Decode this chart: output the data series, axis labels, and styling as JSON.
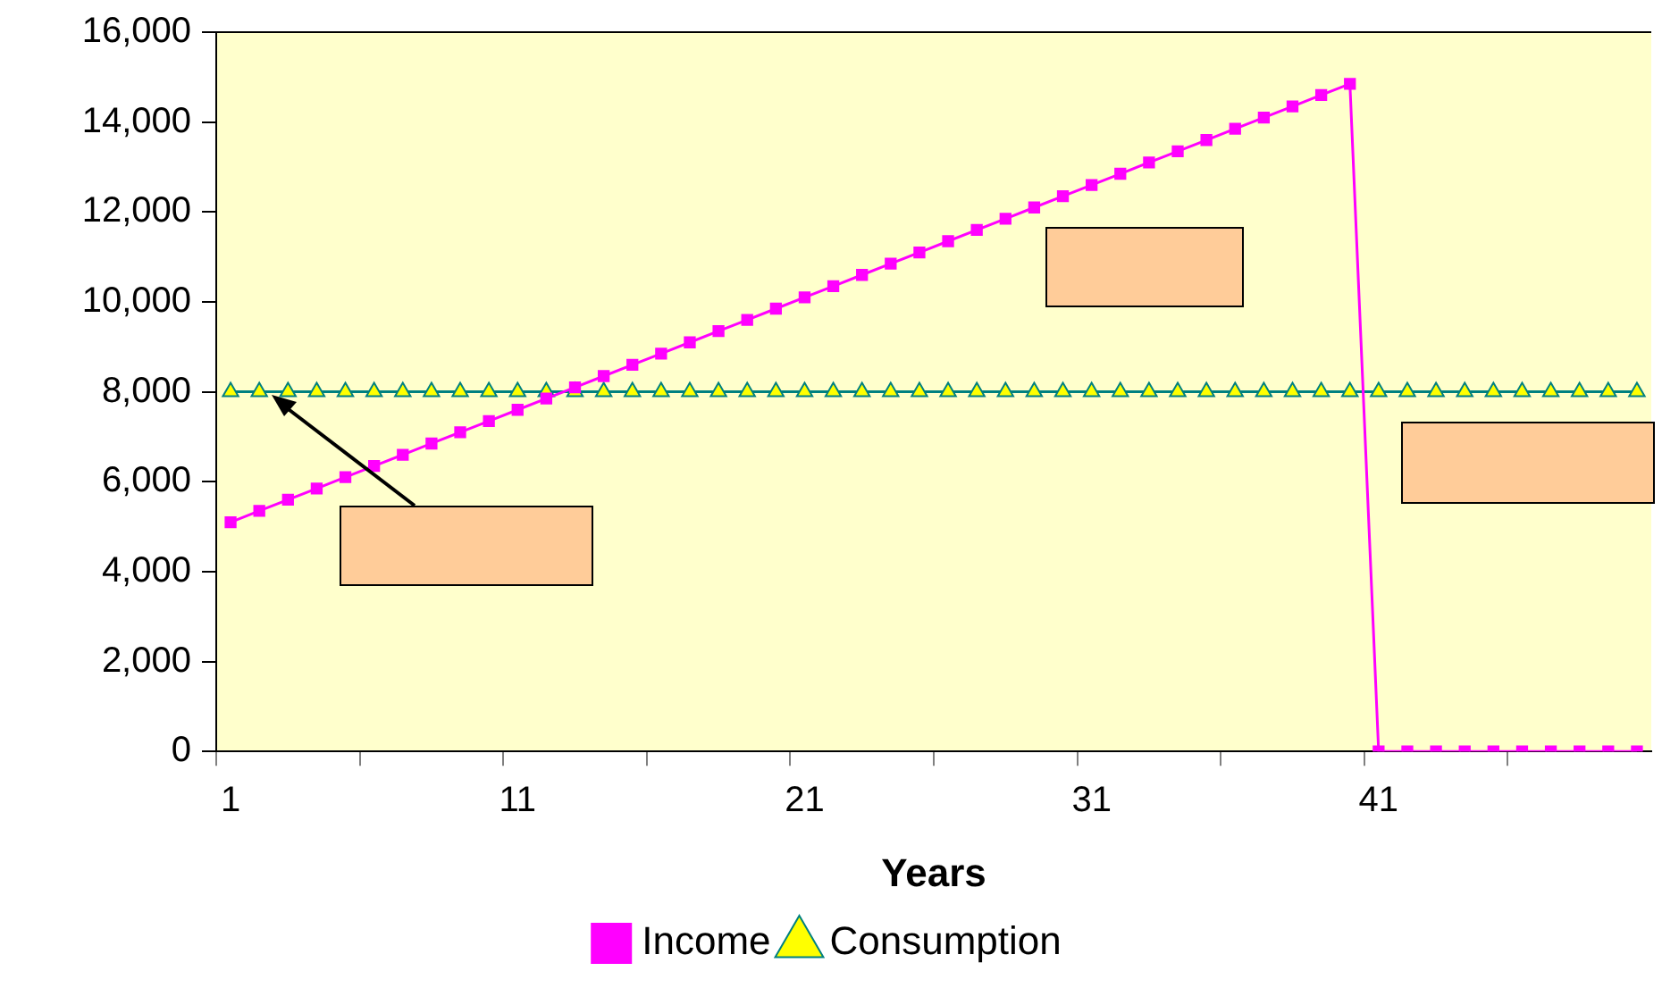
{
  "chart_data": {
    "type": "line",
    "xlabel": "Years",
    "categories": [
      "1",
      null,
      null,
      null,
      null,
      null,
      null,
      null,
      null,
      null,
      "11",
      null,
      null,
      null,
      null,
      null,
      null,
      null,
      null,
      null,
      "21",
      null,
      null,
      null,
      null,
      null,
      null,
      null,
      null,
      null,
      "31",
      null,
      null,
      null,
      null,
      null,
      null,
      null,
      null,
      null,
      "41",
      null,
      null,
      null,
      null,
      null,
      null,
      null,
      null,
      null
    ],
    "series": [
      {
        "name": "Income",
        "color": "#ff00ff",
        "marker": "square",
        "values": [
          5100,
          5350,
          5600,
          5850,
          6100,
          6350,
          6600,
          6850,
          7100,
          7350,
          7600,
          7850,
          8100,
          8350,
          8600,
          8850,
          9100,
          9350,
          9600,
          9850,
          10100,
          10350,
          10600,
          10850,
          11100,
          11350,
          11600,
          11850,
          12100,
          12350,
          12600,
          12850,
          13100,
          13350,
          13600,
          13850,
          14100,
          14350,
          14600,
          14850,
          0,
          0,
          0,
          0,
          0,
          0,
          0,
          0,
          0,
          0
        ]
      },
      {
        "name": "Consumption",
        "color": "#008080",
        "marker": "triangle",
        "values": [
          8000,
          8000,
          8000,
          8000,
          8000,
          8000,
          8000,
          8000,
          8000,
          8000,
          8000,
          8000,
          8000,
          8000,
          8000,
          8000,
          8000,
          8000,
          8000,
          8000,
          8000,
          8000,
          8000,
          8000,
          8000,
          8000,
          8000,
          8000,
          8000,
          8000,
          8000,
          8000,
          8000,
          8000,
          8000,
          8000,
          8000,
          8000,
          8000,
          8000,
          8000,
          8000,
          8000,
          8000,
          8000,
          8000,
          8000,
          8000,
          8000,
          8000
        ]
      }
    ],
    "ylim": [
      0,
      16000
    ],
    "yticks": [
      0,
      {
        "value": 2000,
        "label": "2,000"
      },
      {
        "value": 4000,
        "label": "4,000"
      },
      {
        "value": 6000,
        "label": "6,000"
      },
      {
        "value": 8000,
        "label": "8,000"
      },
      {
        "value": 10000,
        "label": "10,000"
      },
      {
        "value": 12000,
        "label": "12,000"
      },
      {
        "value": 14000,
        "label": "14,000"
      },
      {
        "value": 16000,
        "label": "16,000"
      }
    ],
    "grid": false,
    "legend": "bottom",
    "line_style": "solid"
  }
}
